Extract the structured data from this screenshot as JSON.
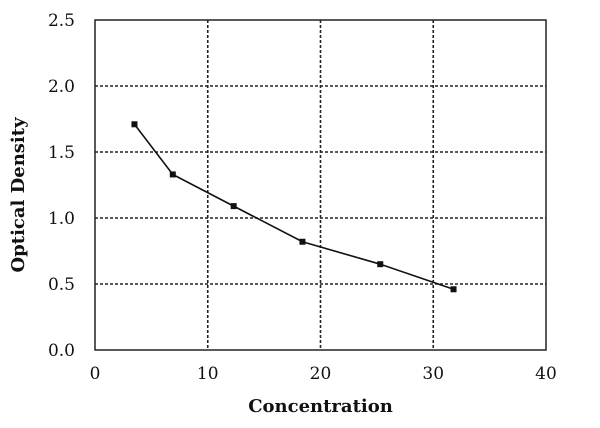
{
  "chart_data": {
    "type": "line",
    "title": "",
    "xlabel": "Concentration",
    "ylabel": "Optical Density",
    "xlim": [
      0,
      40
    ],
    "ylim": [
      0.0,
      2.5
    ],
    "x_ticks": [
      0,
      10,
      20,
      30,
      40
    ],
    "x_tick_labels": [
      "0",
      "10",
      "20",
      "30",
      "40"
    ],
    "y_ticks": [
      0.0,
      0.5,
      1.0,
      1.5,
      2.0,
      2.5
    ],
    "y_tick_labels": [
      "0.0",
      "0.5",
      "1.0",
      "1.5",
      "2.0",
      "2.5"
    ],
    "grid": true,
    "legend": "none",
    "series": [
      {
        "x": [
          3.5,
          6.9,
          12.3,
          18.4,
          25.3,
          31.8
        ],
        "y": [
          1.71,
          1.33,
          1.09,
          0.82,
          0.65,
          0.46
        ]
      }
    ],
    "colors": {
      "line": "#111111",
      "grid": "#222222",
      "text": "#111111"
    }
  }
}
